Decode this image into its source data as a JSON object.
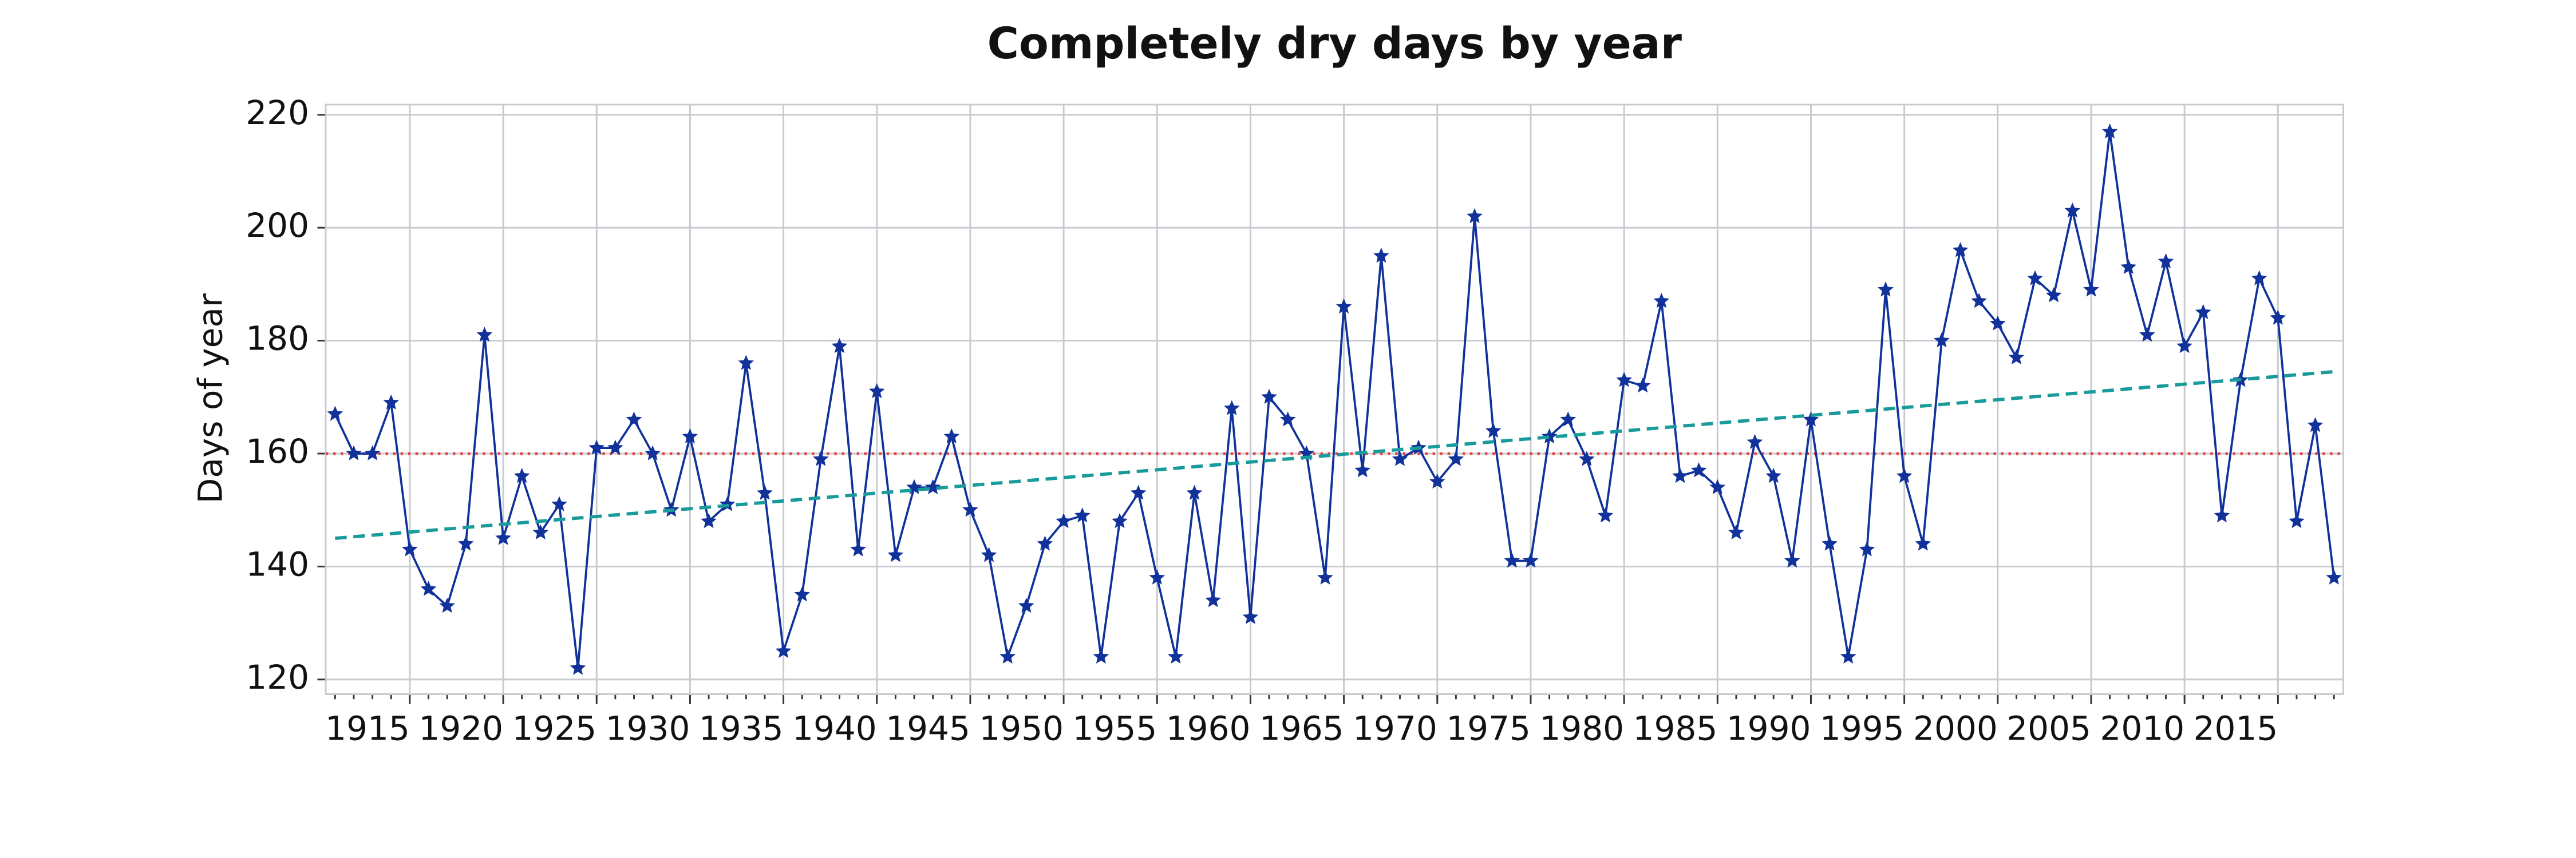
{
  "chart_data": {
    "type": "line",
    "title": "Completely dry days by year",
    "y_label": "Days of year",
    "x": [
      1911,
      1912,
      1913,
      1914,
      1915,
      1916,
      1917,
      1918,
      1919,
      1920,
      1921,
      1922,
      1923,
      1924,
      1925,
      1926,
      1927,
      1928,
      1929,
      1930,
      1931,
      1932,
      1933,
      1934,
      1935,
      1936,
      1937,
      1938,
      1939,
      1940,
      1941,
      1942,
      1943,
      1944,
      1945,
      1946,
      1947,
      1948,
      1949,
      1950,
      1951,
      1952,
      1953,
      1954,
      1955,
      1956,
      1957,
      1958,
      1959,
      1960,
      1961,
      1962,
      1963,
      1964,
      1965,
      1966,
      1967,
      1968,
      1969,
      1970,
      1971,
      1972,
      1973,
      1974,
      1975,
      1976,
      1977,
      1978,
      1979,
      1980,
      1981,
      1982,
      1983,
      1984,
      1985,
      1986,
      1987,
      1988,
      1989,
      1990,
      1991,
      1992,
      1993,
      1994,
      1995,
      1996,
      1997,
      1998,
      1999,
      2000,
      2001,
      2002,
      2003,
      2004,
      2005,
      2006,
      2007,
      2008,
      2009,
      2010,
      2011,
      2012,
      2013,
      2014,
      2015,
      2016,
      2017,
      2018
    ],
    "series": [
      {
        "color": "#10329a",
        "values": [
          167,
          160,
          160,
          169,
          143,
          136,
          133,
          144,
          181,
          145,
          156,
          146,
          151,
          122,
          161,
          161,
          166,
          160,
          150,
          163,
          148,
          151,
          176,
          153,
          125,
          135,
          159,
          179,
          143,
          171,
          142,
          154,
          154,
          163,
          150,
          142,
          124,
          133,
          144,
          148,
          149,
          124,
          148,
          153,
          138,
          124,
          153,
          134,
          168,
          131,
          170,
          166,
          160,
          138,
          186,
          157,
          195,
          159,
          161,
          155,
          159,
          202,
          164,
          141,
          141,
          163,
          166,
          159,
          149,
          173,
          172,
          187,
          156,
          157,
          154,
          146,
          162,
          156,
          141,
          166,
          144,
          124,
          143,
          189,
          156,
          144,
          180,
          196,
          187,
          183,
          177,
          191,
          188,
          203,
          189,
          217,
          193,
          181,
          194,
          179,
          185,
          149,
          173,
          191,
          184,
          148,
          165,
          138
        ]
      }
    ],
    "trend_line": {
      "color": "#1a9b9b",
      "x": [
        1911,
        2018
      ],
      "values": [
        145,
        174.5
      ]
    },
    "reference_line": {
      "color": "#e8413c",
      "value": 160
    },
    "xlim": [
      1910.5,
      2018.5
    ],
    "xticks": [
      1915,
      1920,
      1925,
      1930,
      1935,
      1940,
      1945,
      1950,
      1955,
      1960,
      1965,
      1970,
      1975,
      1980,
      1985,
      1990,
      1995,
      2000,
      2005,
      2010,
      2015
    ],
    "ylim": [
      117.4,
      221.8
    ],
    "yticks": [
      120,
      140,
      160,
      180,
      200,
      220
    ],
    "grid": true
  }
}
